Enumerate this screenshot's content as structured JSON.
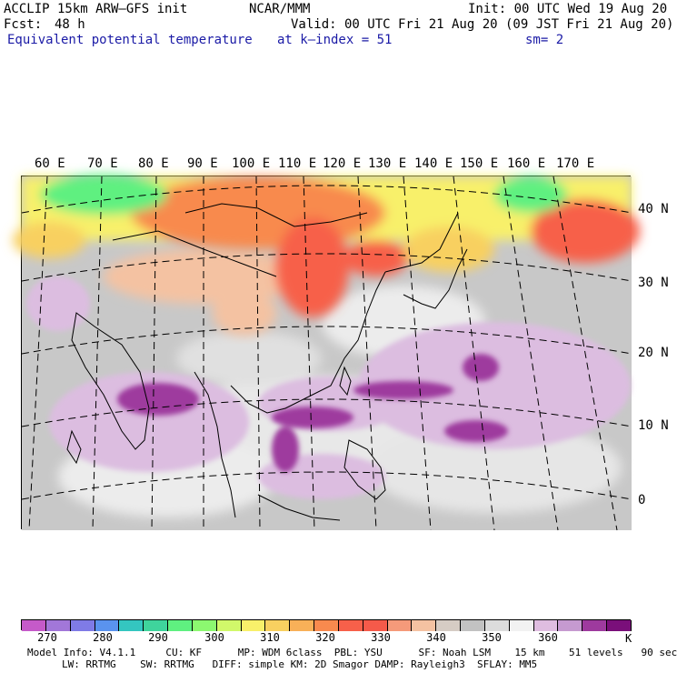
{
  "header": {
    "model": "ACCLIP 15km ARW–GFS init",
    "org": "NCAR/MMM",
    "init": "Init: 00 UTC Wed 19 Aug 20",
    "fcst_label": "Fcst:",
    "fcst_value": "48 h",
    "valid": "Valid: 00 UTC Fri 21 Aug 20 (09 JST Fri 21 Aug 20)",
    "field": "Equivalent potential temperature",
    "level": "at k–index = 51",
    "smooth": "sm= 2"
  },
  "map": {
    "lon_labels": [
      "60 E",
      "70 E",
      "80 E",
      "90 E",
      "100 E",
      "110 E",
      "120 E",
      "130 E",
      "140 E",
      "150 E",
      "160 E",
      "170 E"
    ],
    "lat_labels": [
      "40 N",
      "30 N",
      "20 N",
      "10 N",
      "0"
    ],
    "colors": {
      "land_line": "#000000",
      "grid_line": "#000000"
    }
  },
  "colorbar": {
    "colors": [
      "#c55ac9",
      "#a277d9",
      "#7f7be6",
      "#5a93ee",
      "#34c6c0",
      "#3fd49c",
      "#5ff080",
      "#8cf870",
      "#d1f86a",
      "#f8f06a",
      "#f8d060",
      "#f8b058",
      "#f88a4e",
      "#f7604a",
      "#f55a4a",
      "#f59a7a",
      "#f4c2a2",
      "#d6ccc4",
      "#c2c2c2",
      "#dcdcdc",
      "#f2f2f2",
      "#dfbde0",
      "#c69ad0",
      "#9e3a9e",
      "#7a0f7a"
    ],
    "labels": [
      "270",
      "280",
      "290",
      "300",
      "310",
      "320",
      "330",
      "340",
      "350",
      "360"
    ],
    "unit": "K"
  },
  "footer": {
    "line1": "Model Info: V4.1.1     CU: KF      MP: WDM 6class  PBL: YSU      SF: Noah LSM    15 km    51 levels   90 sec",
    "line2": "LW: RRTMG    SW: RRTMG   DIFF: simple KM: 2D Smagor DAMP: Rayleigh3  SFLAY: MM5"
  }
}
